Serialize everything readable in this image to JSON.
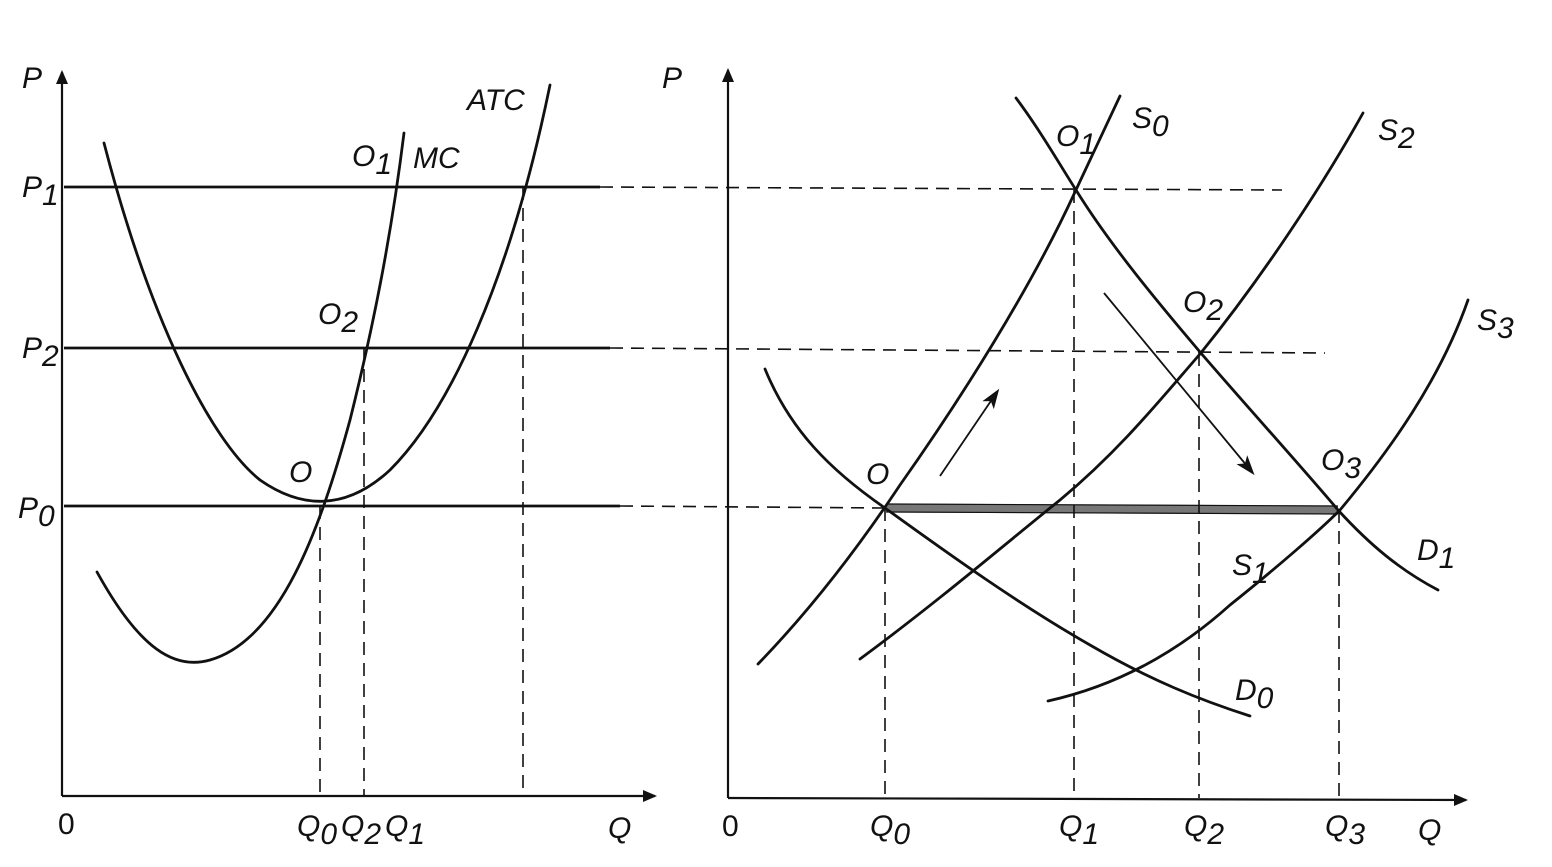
{
  "left_panel": {
    "y_axis_label": "P",
    "x_axis_label": "Q",
    "origin_label": "0",
    "price_labels": [
      {
        "name": "p1",
        "main": "P",
        "sub": "1"
      },
      {
        "name": "p2",
        "main": "P",
        "sub": "2"
      },
      {
        "name": "p0",
        "main": "P",
        "sub": "0"
      }
    ],
    "quantity_labels": [
      {
        "name": "q0",
        "main": "Q",
        "sub": "0"
      },
      {
        "name": "q2",
        "main": "Q",
        "sub": "2"
      },
      {
        "name": "q1",
        "main": "Q",
        "sub": "1"
      }
    ],
    "curve_labels": {
      "atc": "ATC",
      "mc": "MC"
    },
    "point_labels": [
      {
        "name": "o1",
        "main": "O",
        "sub": "1"
      },
      {
        "name": "o2",
        "main": "O",
        "sub": "2"
      },
      {
        "name": "o",
        "main": "O",
        "sub": ""
      }
    ]
  },
  "right_panel": {
    "y_axis_label": "P",
    "x_axis_label": "Q",
    "origin_label": "0",
    "quantity_labels": [
      {
        "name": "q0",
        "main": "Q",
        "sub": "0"
      },
      {
        "name": "q1",
        "main": "Q",
        "sub": "1"
      },
      {
        "name": "q2",
        "main": "Q",
        "sub": "2"
      },
      {
        "name": "q3",
        "main": "Q",
        "sub": "3"
      }
    ],
    "supply_labels": [
      {
        "name": "s0",
        "main": "S",
        "sub": "0"
      },
      {
        "name": "s2",
        "main": "S",
        "sub": "2"
      },
      {
        "name": "s3",
        "main": "S",
        "sub": "3"
      },
      {
        "name": "s1",
        "main": "S",
        "sub": "1"
      }
    ],
    "demand_labels": [
      {
        "name": "d1",
        "main": "D",
        "sub": "1"
      },
      {
        "name": "d0",
        "main": "D",
        "sub": "0"
      }
    ],
    "point_labels": [
      {
        "name": "o1",
        "main": "O",
        "sub": "1"
      },
      {
        "name": "o2",
        "main": "O",
        "sub": "2"
      },
      {
        "name": "o3",
        "main": "O",
        "sub": "3"
      },
      {
        "name": "o",
        "main": "O",
        "sub": ""
      }
    ]
  }
}
